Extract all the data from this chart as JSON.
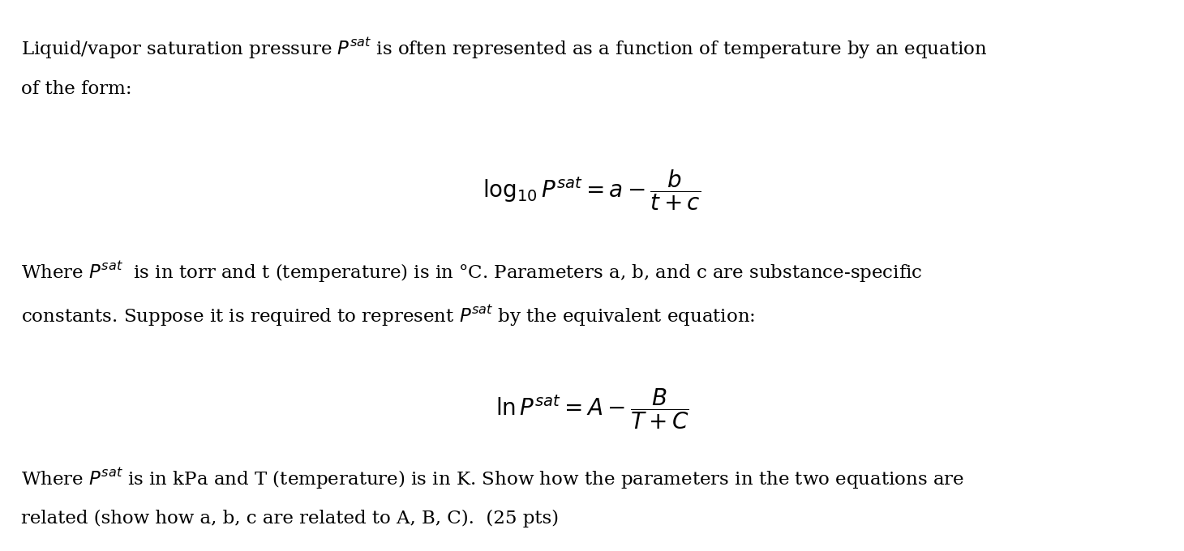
{
  "background_color": "#ffffff",
  "figsize": [
    14.6,
    6.8
  ],
  "dpi": 100,
  "text_color": "#000000",
  "font_size_body": 16.5,
  "font_size_eq": 20,
  "paragraph1_line1": "Liquid/vapor saturation pressure $P^{sat}$ is often represented as a function of temperature by an equation",
  "paragraph1_line2": "of the form:",
  "equation1": "$\\log_{10} P^{sat} = a - \\dfrac{b}{t+c}$",
  "paragraph2_line1": "Where $P^{sat}$  is in torr and t (temperature) is in °C. Parameters a, b, and c are substance-specific",
  "paragraph2_line2": "constants. Suppose it is required to represent $P^{sat}$ by the equivalent equation:",
  "equation2": "$\\ln P^{sat} = A - \\dfrac{B}{T+C}$",
  "paragraph3_line1": "Where $P^{sat}$ is in kPa and T (temperature) is in K. Show how the parameters in the two equations are",
  "paragraph3_line2": "related (show how a, b, c are related to A, B, C).  (25 pts)"
}
